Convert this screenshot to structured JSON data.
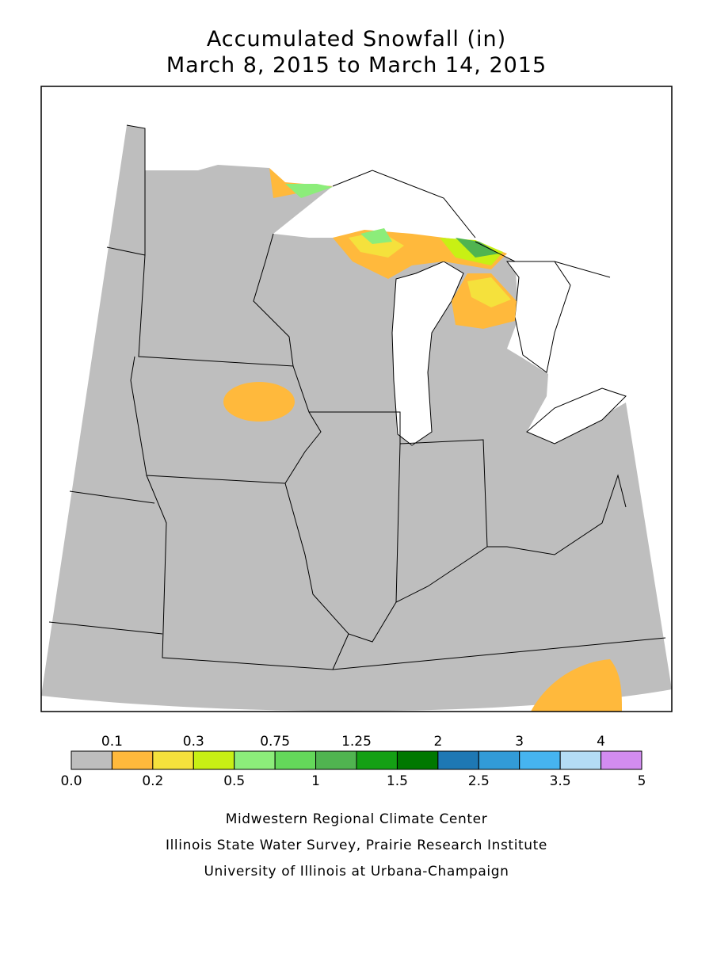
{
  "title": [
    "Accumulated Snowfall (in)",
    "March 8, 2015 to March 14, 2015"
  ],
  "legend": {
    "breaks": [
      {
        "value": 0,
        "label": "0.0"
      },
      0.1,
      0.2,
      0.3,
      0.5,
      0.75,
      1,
      1.25,
      1.5,
      2,
      2.5,
      3,
      3.5,
      4,
      5
    ],
    "colors": [
      "#bebebe",
      "#ffb93c",
      "#f5e13c",
      "#c8f014",
      "#8ced7a",
      "#64d85a",
      "#50b450",
      "#14a014",
      "#007800",
      "#1e78b4",
      "#329bd7",
      "#46b4f0",
      "#b4dcf5",
      "#d28cf0"
    ]
  },
  "credits": [
    "Midwestern Regional Climate Center",
    "Illinois State Water Survey, Prairie Research Institute",
    "University of Illinois at Urbana-Champaign"
  ]
}
